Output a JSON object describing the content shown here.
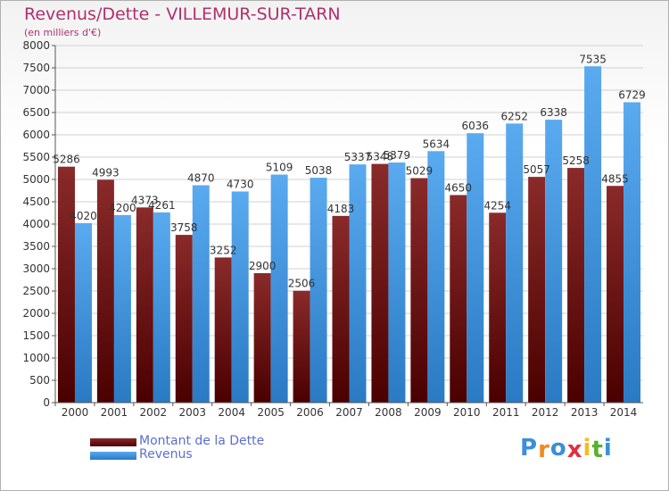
{
  "chart_data": {
    "type": "bar",
    "title": "Revenus/Dette - VILLEMUR-SUR-TARN",
    "subtitle": "(en milliers d'€)",
    "categories": [
      "2000",
      "2001",
      "2002",
      "2003",
      "2004",
      "2005",
      "2006",
      "2007",
      "2008",
      "2009",
      "2010",
      "2011",
      "2012",
      "2013",
      "2014"
    ],
    "series": [
      {
        "name": "Montant de la Dette",
        "color": "#7a1a1a",
        "values": [
          5286,
          4993,
          4373,
          3758,
          3252,
          2900,
          2506,
          4183,
          5348,
          5029,
          4650,
          4254,
          5057,
          5258,
          4855
        ],
        "labels": [
          "5286",
          "4993",
          "4373",
          "3758",
          "3252",
          "2900",
          "2506",
          "4183",
          "5348",
          "5029",
          "4650",
          "4254",
          "5057",
          "5258",
          "4855"
        ]
      },
      {
        "name": "Revenus",
        "color": "#4a9ee0",
        "values": [
          4020,
          4200,
          4261,
          4870,
          4730,
          5109,
          5038,
          5337,
          5379,
          5634,
          6036,
          6252,
          6338,
          7535,
          6729
        ],
        "labels": [
          "4020",
          "4200",
          "4261",
          "4870",
          "4730",
          "5109",
          "5038",
          "5337",
          "5379",
          "5634",
          "6036",
          "6252",
          "6338",
          "7535",
          "6729"
        ]
      }
    ],
    "ylim": [
      0,
      8000
    ],
    "yticks": [
      0,
      500,
      1000,
      1500,
      2000,
      2500,
      3000,
      3500,
      4000,
      4500,
      5000,
      5500,
      6000,
      6500,
      7000,
      7500,
      8000
    ],
    "grid": true,
    "legend_position": "bottom-left"
  },
  "legend": {
    "items": [
      {
        "label": "Montant de la Dette",
        "color": "#7a1a1a"
      },
      {
        "label": "Revenus",
        "color": "#4a9ee0"
      }
    ]
  },
  "logo": {
    "letters": [
      "P",
      "r",
      "o",
      "x",
      "i",
      "t",
      "i"
    ],
    "colors": [
      "#3a8fd8",
      "#f08a20",
      "#3a8fd8",
      "#e03040",
      "#f0c020",
      "#5ab030",
      "#3a8fd8"
    ]
  }
}
